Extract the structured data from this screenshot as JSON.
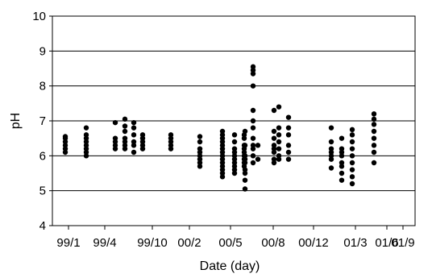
{
  "chart_data": {
    "type": "scatter",
    "xlabel": "Date (day)",
    "ylabel": "pH",
    "ylim": [
      4,
      10
    ],
    "yticks": [
      4,
      5,
      6,
      7,
      8,
      9,
      10
    ],
    "xticks": [
      "99/1",
      "99/4",
      "99/10",
      "00/2",
      "00/5",
      "00/8",
      "00/12",
      "01/3",
      "01/6",
      "01/9"
    ],
    "grid": "horizontal",
    "legend": "none",
    "colors": {
      "points": "#000000",
      "grid": "#000000",
      "axis": "#000000"
    },
    "points": [
      {
        "x": "99/1",
        "y": [
          6.1,
          6.2,
          6.3,
          6.4,
          6.5,
          6.55
        ]
      },
      {
        "x": "99/2",
        "y": [
          6.0,
          6.1,
          6.2,
          6.3,
          6.4,
          6.5,
          6.6,
          6.8
        ]
      },
      {
        "x": "99/4",
        "y": [
          6.2,
          6.3,
          6.4,
          6.5,
          6.95
        ]
      },
      {
        "x": "99/5",
        "y": [
          6.2,
          6.3,
          6.4,
          6.5,
          6.7,
          6.85,
          7.05
        ]
      },
      {
        "x": "99/7",
        "y": [
          6.1,
          6.3,
          6.4,
          6.6,
          6.8,
          6.95
        ]
      },
      {
        "x": "99/8",
        "y": [
          6.2,
          6.3,
          6.4,
          6.5,
          6.6
        ]
      },
      {
        "x": "99/11",
        "y": [
          6.2,
          6.3,
          6.4,
          6.5,
          6.6
        ]
      },
      {
        "x": "00/2",
        "y": [
          5.7,
          5.8,
          5.9,
          6.0,
          6.1,
          6.2,
          6.4,
          6.55
        ]
      },
      {
        "x": "00/4",
        "y": [
          5.4,
          5.5,
          5.6,
          5.7,
          5.8,
          5.9,
          6.0,
          6.1,
          6.2,
          6.3,
          6.4,
          6.5,
          6.6,
          6.7
        ]
      },
      {
        "x": "00/5",
        "y": [
          5.5,
          5.6,
          5.7,
          5.8,
          5.9,
          6.0,
          6.1,
          6.2,
          6.4,
          6.6
        ]
      },
      {
        "x": "00/6",
        "y": [
          5.7,
          5.8,
          5.9,
          6.0,
          6.1,
          6.2,
          6.3,
          6.5,
          6.6
        ]
      },
      {
        "x": "00/7",
        "y": [
          5.05,
          5.3,
          5.5,
          5.6,
          5.8,
          5.9,
          6.0,
          6.3,
          6.7
        ]
      },
      {
        "x": "00/7b",
        "y": [
          5.8,
          6.0,
          6.2,
          6.3,
          6.5,
          6.8,
          7.0,
          7.3,
          8.0,
          8.35,
          8.45,
          8.55
        ]
      },
      {
        "x": "00/8",
        "y": [
          6.3,
          5.9
        ]
      },
      {
        "x": "00/9",
        "y": [
          5.8,
          5.9,
          6.1,
          6.3,
          6.5,
          6.7,
          7.3,
          6.2
        ]
      },
      {
        "x": "00/10",
        "y": [
          5.9,
          6.0,
          6.2,
          6.4,
          6.6,
          6.8,
          7.4
        ]
      },
      {
        "x": "00/11",
        "y": [
          5.9,
          6.1,
          6.3,
          6.6,
          6.8,
          7.1
        ]
      },
      {
        "x": "01/2",
        "y": [
          5.65,
          5.9,
          6.0,
          6.1,
          6.2,
          6.4,
          6.8
        ]
      },
      {
        "x": "01/3",
        "y": [
          5.3,
          5.5,
          5.7,
          5.8,
          6.0,
          6.1,
          6.2,
          6.5
        ]
      },
      {
        "x": "01/4",
        "y": [
          5.2,
          5.4,
          5.6,
          5.8,
          6.0,
          6.2,
          6.4,
          6.6,
          6.75
        ]
      },
      {
        "x": "01/6",
        "y": [
          5.8,
          6.1,
          6.3,
          6.5,
          6.7,
          6.9,
          7.05,
          7.2
        ]
      }
    ]
  }
}
